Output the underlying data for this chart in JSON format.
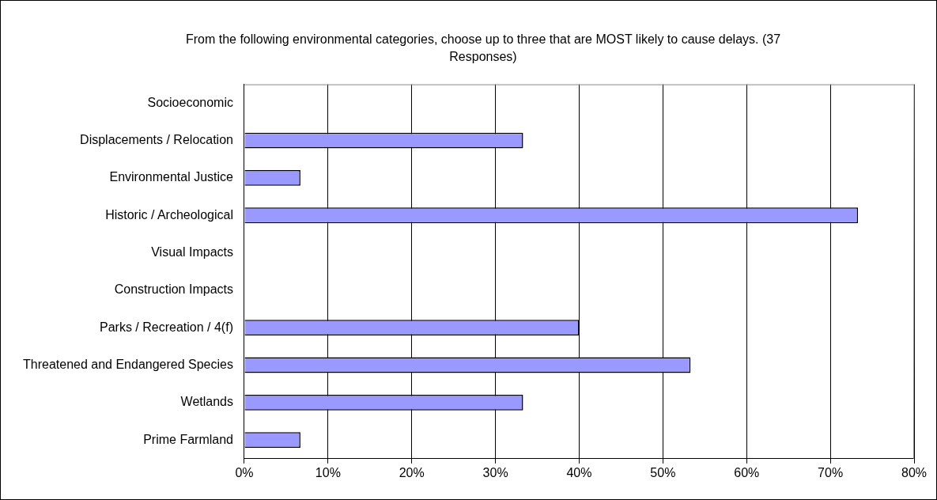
{
  "chart_data": {
    "type": "bar",
    "orientation": "horizontal",
    "title": "From the following environmental categories, choose up to three that are MOST likely to cause delays. (37 Responses)",
    "categories": [
      "Socioeconomic",
      "Displacements / Relocation",
      "Environmental Justice",
      "Historic / Archeological",
      "Visual Impacts",
      "Construction Impacts",
      "Parks / Recreation / 4(f)",
      "Threatened and Endangered Species",
      "Wetlands",
      "Prime Farmland"
    ],
    "values": [
      0,
      33.3,
      6.7,
      73.3,
      0,
      0,
      40,
      53.3,
      33.3,
      6.7
    ],
    "color": "#9999ff",
    "xlim": [
      0,
      80
    ],
    "xticks": [
      {
        "value": 0,
        "label": "0%"
      },
      {
        "value": 10,
        "label": "10%"
      },
      {
        "value": 20,
        "label": "20%"
      },
      {
        "value": 30,
        "label": "30%"
      },
      {
        "value": 40,
        "label": "40%"
      },
      {
        "value": 50,
        "label": "50%"
      },
      {
        "value": 60,
        "label": "60%"
      },
      {
        "value": 70,
        "label": "70%"
      },
      {
        "value": 80,
        "label": "80%"
      }
    ],
    "grid": "x",
    "legend": false
  }
}
